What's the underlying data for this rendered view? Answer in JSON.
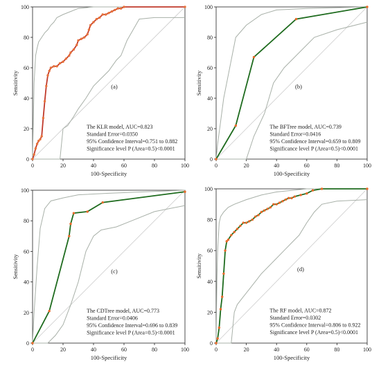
{
  "figure": {
    "xlabel": "100-Specificity",
    "ylabel": "Sensitivity"
  },
  "chart_data": [
    {
      "type": "line",
      "panel_label": "(a)",
      "xlim": [
        0,
        100
      ],
      "ylim": [
        0,
        100
      ],
      "ticks": [
        0,
        20,
        40,
        60,
        80,
        100
      ],
      "grid": false,
      "roc_color": "#c0392b",
      "ci_color": "#a8b0a8",
      "markers": true,
      "roc": [
        [
          0,
          0
        ],
        [
          1,
          3
        ],
        [
          2,
          7
        ],
        [
          3,
          10
        ],
        [
          4,
          12
        ],
        [
          5,
          13
        ],
        [
          6,
          15
        ],
        [
          7,
          27
        ],
        [
          8,
          38
        ],
        [
          9,
          48
        ],
        [
          10,
          55
        ],
        [
          11,
          58
        ],
        [
          12,
          60
        ],
        [
          14,
          61
        ],
        [
          16,
          61
        ],
        [
          18,
          63
        ],
        [
          20,
          64
        ],
        [
          22,
          66
        ],
        [
          24,
          68
        ],
        [
          25,
          70
        ],
        [
          27,
          72
        ],
        [
          29,
          75
        ],
        [
          30,
          78
        ],
        [
          32,
          79
        ],
        [
          34,
          80
        ],
        [
          36,
          82
        ],
        [
          37,
          85
        ],
        [
          38,
          88
        ],
        [
          40,
          90
        ],
        [
          42,
          92
        ],
        [
          44,
          93
        ],
        [
          46,
          95
        ],
        [
          48,
          95
        ],
        [
          50,
          96
        ],
        [
          52,
          97
        ],
        [
          54,
          98
        ],
        [
          56,
          99
        ],
        [
          58,
          99
        ],
        [
          60,
          100
        ],
        [
          100,
          100
        ]
      ],
      "ci_upper": [
        [
          0,
          0
        ],
        [
          0.5,
          25
        ],
        [
          1,
          50
        ],
        [
          2,
          68
        ],
        [
          3,
          73
        ],
        [
          4,
          77
        ],
        [
          6,
          80
        ],
        [
          8,
          83
        ],
        [
          10,
          85
        ],
        [
          12,
          88
        ],
        [
          14,
          90
        ],
        [
          16,
          93
        ],
        [
          20,
          95
        ],
        [
          25,
          97
        ],
        [
          30,
          99
        ],
        [
          40,
          100
        ],
        [
          100,
          100
        ]
      ],
      "ci_lower": [
        [
          0,
          0
        ],
        [
          18,
          0
        ],
        [
          19,
          10
        ],
        [
          20,
          20
        ],
        [
          23,
          22
        ],
        [
          25,
          25
        ],
        [
          27,
          28
        ],
        [
          30,
          33
        ],
        [
          35,
          40
        ],
        [
          40,
          48
        ],
        [
          45,
          53
        ],
        [
          50,
          58
        ],
        [
          55,
          65
        ],
        [
          58,
          68
        ],
        [
          62,
          78
        ],
        [
          66,
          85
        ],
        [
          70,
          92
        ],
        [
          80,
          93
        ],
        [
          100,
          93
        ]
      ],
      "annotations": [
        "The KLR model, AUC=0.823",
        "Standard Error=0.0350",
        "95% Confidence Interval=0.751 to 0.882",
        "Significance level P (Area=0.5)<0.0001"
      ]
    },
    {
      "type": "line",
      "panel_label": "(b)",
      "xlim": [
        0,
        100
      ],
      "ylim": [
        0,
        100
      ],
      "ticks": [
        0,
        20,
        40,
        60,
        80,
        100
      ],
      "grid": false,
      "roc_color": "#1e6b1e",
      "ci_color": "#a8b0a8",
      "markers": true,
      "roc": [
        [
          0,
          0
        ],
        [
          13,
          22
        ],
        [
          25,
          67
        ],
        [
          53,
          92
        ],
        [
          100,
          100
        ]
      ],
      "ci_upper": [
        [
          0,
          0
        ],
        [
          1,
          10
        ],
        [
          5,
          40
        ],
        [
          13,
          80
        ],
        [
          20,
          88
        ],
        [
          30,
          95
        ],
        [
          40,
          98
        ],
        [
          60,
          99
        ],
        [
          100,
          100
        ]
      ],
      "ci_lower": [
        [
          0,
          0
        ],
        [
          20,
          0
        ],
        [
          25,
          15
        ],
        [
          32,
          30
        ],
        [
          38,
          50
        ],
        [
          45,
          60
        ],
        [
          55,
          70
        ],
        [
          65,
          80
        ],
        [
          80,
          85
        ],
        [
          100,
          90
        ]
      ],
      "annotations": [
        "The BFTree model, AUC=0.739",
        "Standard Error=0.0416",
        "95% Confidence Interval=0.659 to 0.809",
        "Significance level P (Area=0.5)<0.0001"
      ]
    },
    {
      "type": "line",
      "panel_label": "(c)",
      "xlim": [
        0,
        100
      ],
      "ylim": [
        0,
        100
      ],
      "ticks": [
        0,
        20,
        40,
        60,
        80,
        100
      ],
      "grid": false,
      "roc_color": "#1e6b1e",
      "ci_color": "#a8b0a8",
      "markers": true,
      "roc": [
        [
          0,
          0
        ],
        [
          11,
          21
        ],
        [
          24,
          70
        ],
        [
          25,
          78
        ],
        [
          27,
          85
        ],
        [
          36,
          86
        ],
        [
          46,
          92
        ],
        [
          100,
          99
        ]
      ],
      "ci_upper": [
        [
          0,
          0
        ],
        [
          1,
          20
        ],
        [
          3,
          50
        ],
        [
          5,
          75
        ],
        [
          8,
          88
        ],
        [
          12,
          93
        ],
        [
          20,
          95
        ],
        [
          30,
          97
        ],
        [
          50,
          98
        ],
        [
          100,
          100
        ]
      ],
      "ci_lower": [
        [
          0,
          0
        ],
        [
          10,
          0
        ],
        [
          15,
          5
        ],
        [
          20,
          12
        ],
        [
          25,
          25
        ],
        [
          30,
          40
        ],
        [
          35,
          60
        ],
        [
          40,
          70
        ],
        [
          45,
          74
        ],
        [
          55,
          76
        ],
        [
          65,
          80
        ],
        [
          80,
          86
        ],
        [
          100,
          90
        ]
      ],
      "annotations": [
        "The CDTree model, AUC=0.773",
        "Standard Error=0.0406",
        "95% Confidence Interval=0.696 to 0.839",
        "Significance level P (Area=0.5)<0.0001"
      ]
    },
    {
      "type": "line",
      "panel_label": "(d)",
      "xlim": [
        0,
        100
      ],
      "ylim": [
        0,
        100
      ],
      "ticks": [
        0,
        20,
        40,
        60,
        80,
        100
      ],
      "grid": false,
      "roc_color": "#1e6b1e",
      "ci_color": "#a8b0a8",
      "markers": true,
      "roc": [
        [
          0,
          0
        ],
        [
          1,
          3
        ],
        [
          2,
          10
        ],
        [
          3,
          22
        ],
        [
          4,
          30
        ],
        [
          5,
          45
        ],
        [
          6,
          60
        ],
        [
          7,
          66
        ],
        [
          8,
          67
        ],
        [
          10,
          70
        ],
        [
          12,
          72
        ],
        [
          14,
          74
        ],
        [
          16,
          76
        ],
        [
          18,
          78
        ],
        [
          20,
          78
        ],
        [
          22,
          79
        ],
        [
          24,
          80
        ],
        [
          26,
          82
        ],
        [
          28,
          83
        ],
        [
          30,
          85
        ],
        [
          32,
          86
        ],
        [
          34,
          87
        ],
        [
          36,
          88
        ],
        [
          38,
          90
        ],
        [
          40,
          90
        ],
        [
          42,
          91
        ],
        [
          44,
          92
        ],
        [
          46,
          93
        ],
        [
          48,
          94
        ],
        [
          50,
          94
        ],
        [
          52,
          95
        ],
        [
          56,
          96
        ],
        [
          60,
          97
        ],
        [
          64,
          99
        ],
        [
          70,
          100
        ],
        [
          100,
          100
        ]
      ],
      "ci_upper": [
        [
          0,
          0
        ],
        [
          0.5,
          40
        ],
        [
          1,
          60
        ],
        [
          2,
          78
        ],
        [
          3,
          82
        ],
        [
          5,
          85
        ],
        [
          8,
          88
        ],
        [
          12,
          90
        ],
        [
          20,
          93
        ],
        [
          30,
          96
        ],
        [
          40,
          98
        ],
        [
          50,
          99
        ],
        [
          60,
          100
        ],
        [
          100,
          100
        ]
      ],
      "ci_lower": [
        [
          0,
          0
        ],
        [
          10,
          0
        ],
        [
          11,
          10
        ],
        [
          12,
          20
        ],
        [
          14,
          25
        ],
        [
          18,
          30
        ],
        [
          22,
          35
        ],
        [
          26,
          40
        ],
        [
          30,
          45
        ],
        [
          35,
          50
        ],
        [
          40,
          55
        ],
        [
          45,
          60
        ],
        [
          50,
          65
        ],
        [
          55,
          70
        ],
        [
          60,
          78
        ],
        [
          65,
          85
        ],
        [
          70,
          90
        ],
        [
          80,
          92
        ],
        [
          100,
          93
        ]
      ],
      "annotations": [
        "The RF model, AUC=0.872",
        "Standard Error=0.0302",
        "95% Confidence Interval=0.806 to 0.922",
        "Significance level P (Area=0.5)<0.0001"
      ]
    }
  ]
}
